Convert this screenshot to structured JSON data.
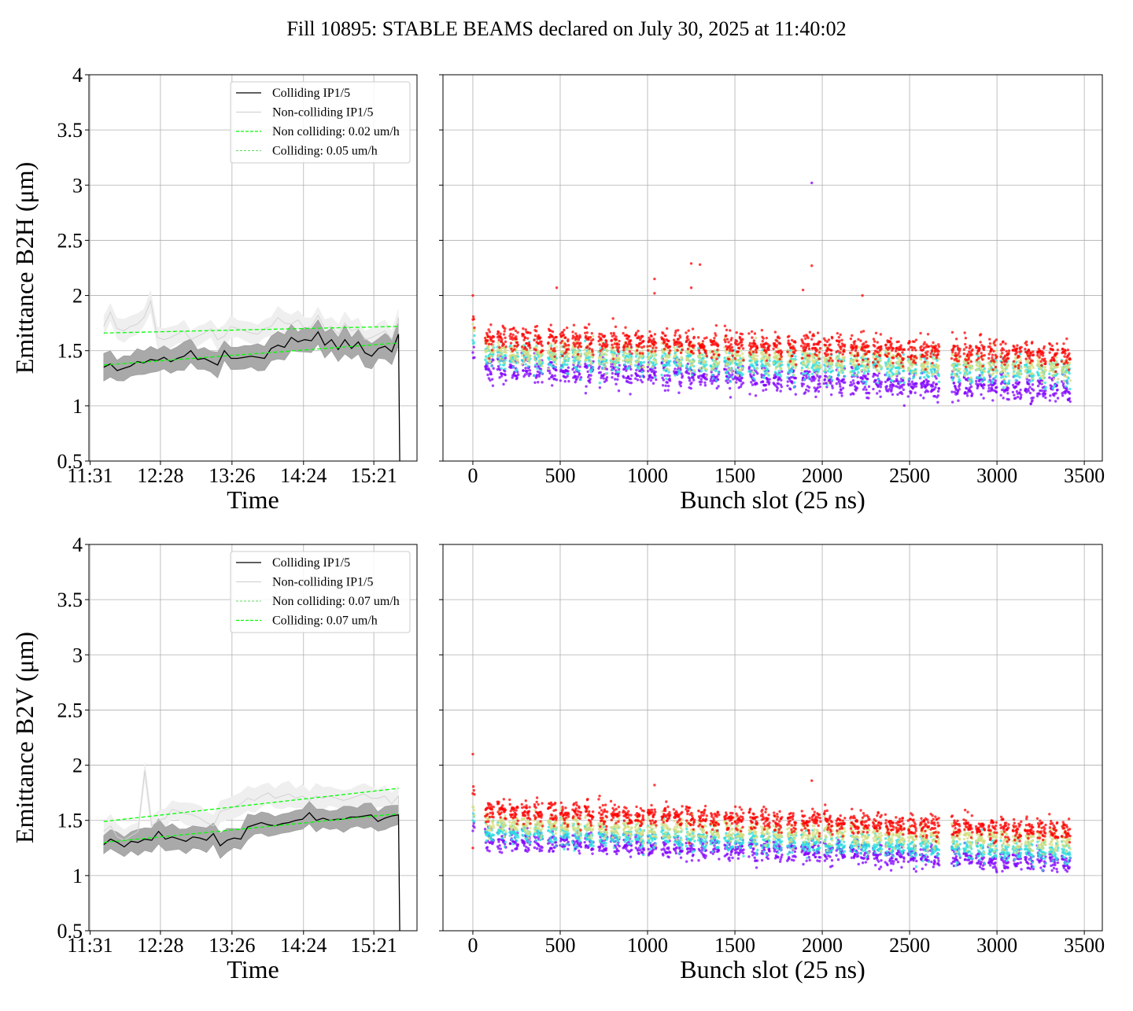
{
  "title": "Fill 10895: STABLE BEAMS declared on July 30, 2025 at 11:40:02",
  "colors": {
    "colliding": "#000000",
    "colliding_band": "#a9a9a9",
    "noncolliding": "#d3d3d3",
    "noncolliding_band": "#efefef",
    "fit": "#00ff00",
    "rainbow": [
      "#8000ff",
      "#2adddd",
      "#d4dd80",
      "#ff0000"
    ]
  },
  "chart_data": [
    {
      "type": "line",
      "panel": "top-left",
      "ylabel": "Emittance B2H (μm)",
      "xlabel": "Time",
      "ylim": [
        0.5,
        4.0
      ],
      "yticks": [
        0.5,
        1.0,
        1.5,
        2.0,
        2.5,
        3.0,
        3.5,
        4.0
      ],
      "xlim_minutes_from_11_31": [
        -1,
        265
      ],
      "xticks": [
        {
          "min": 0,
          "label": "11:31"
        },
        {
          "min": 57,
          "label": "12:28"
        },
        {
          "min": 115,
          "label": "13:26"
        },
        {
          "min": 173,
          "label": "14:24"
        },
        {
          "min": 230,
          "label": "15:21"
        }
      ],
      "t_start_min": 11,
      "t_end_min": 250,
      "drop_to": 0.5,
      "colliding": [
        1.35,
        1.38,
        1.32,
        1.34,
        1.36,
        1.4,
        1.39,
        1.42,
        1.41,
        1.44,
        1.4,
        1.43,
        1.45,
        1.5,
        1.42,
        1.43,
        1.4,
        1.37,
        1.5,
        1.43,
        1.43,
        1.44,
        1.45,
        1.44,
        1.43,
        1.52,
        1.55,
        1.53,
        1.62,
        1.58,
        1.6,
        1.59,
        1.67,
        1.55,
        1.6,
        1.51,
        1.6,
        1.52,
        1.58,
        1.48,
        1.45,
        1.52,
        1.54,
        1.49,
        1.65
      ],
      "colliding_spread": 0.11,
      "noncolliding": [
        1.72,
        1.85,
        1.7,
        1.68,
        1.72,
        1.74,
        1.8,
        1.95,
        1.62,
        1.6,
        1.62,
        1.65,
        1.68,
        1.6,
        1.63,
        1.66,
        1.7,
        1.6,
        1.63,
        1.72,
        1.7,
        1.68,
        1.66,
        1.65,
        1.7,
        1.72,
        1.8,
        1.75,
        1.74,
        1.78,
        1.7,
        1.72,
        1.82,
        1.7,
        1.72,
        1.65,
        1.75,
        1.68,
        1.7,
        1.6,
        1.62,
        1.65,
        1.68,
        1.6,
        1.8
      ],
      "noncolliding_spread": 0.09,
      "fit_noncolliding": [
        1.66,
        1.72
      ],
      "fit_colliding": [
        1.37,
        1.57
      ],
      "legend": {
        "placement": "top-right",
        "entries": [
          {
            "label": "Colliding IP1/5",
            "style": "colliding"
          },
          {
            "label": "Non-colliding IP1/5",
            "style": "noncolliding"
          },
          {
            "label": "Non colliding: 0.02 um/h",
            "style": "fit-bold"
          },
          {
            "label": "Colliding: 0.05 um/h",
            "style": "fit-thin"
          }
        ]
      }
    },
    {
      "type": "scatter",
      "panel": "top-right",
      "xlabel": "Bunch slot (25 ns)",
      "xlim": [
        -171,
        3603
      ],
      "xticks": [
        0,
        500,
        1000,
        1500,
        2000,
        2500,
        3000,
        3500
      ],
      "ylim": [
        0.5,
        4.0
      ],
      "train_starts": [
        70,
        140,
        210,
        280,
        350,
        430,
        500,
        570,
        640,
        720,
        790,
        860,
        930,
        1000,
        1080,
        1150,
        1220,
        1290,
        1360,
        1440,
        1500,
        1580,
        1650,
        1720,
        1800,
        1880,
        1940,
        2010,
        2080,
        2160,
        2220,
        2290,
        2360,
        2420,
        2490,
        2560,
        2620,
        2740,
        2810,
        2880,
        2950,
        3020,
        3090,
        3160,
        3230,
        3300,
        3370
      ],
      "train_length": 50,
      "bands_start_end": [
        [
          1.35,
          1.13
        ],
        [
          1.45,
          1.3
        ],
        [
          1.5,
          1.35
        ],
        [
          1.62,
          1.46
        ]
      ],
      "spread": 0.06,
      "outliers": [
        [
          1940,
          3.02
        ],
        [
          1940,
          2.27
        ],
        [
          1250,
          2.29
        ],
        [
          1300,
          2.28
        ],
        [
          1040,
          2.15
        ],
        [
          1040,
          2.02
        ],
        [
          1890,
          2.05
        ],
        [
          480,
          2.07
        ],
        [
          2230,
          2.0
        ],
        [
          0,
          2.0
        ],
        [
          1250,
          2.07
        ]
      ]
    },
    {
      "type": "line",
      "panel": "bottom-left",
      "ylabel": "Emittance B2V (μm)",
      "xlabel": "Time",
      "ylim": [
        0.5,
        4.0
      ],
      "yticks": [
        0.5,
        1.0,
        1.5,
        2.0,
        2.5,
        3.0,
        3.5,
        4.0
      ],
      "xlim_minutes_from_11_31": [
        -1,
        265
      ],
      "xticks": [
        {
          "min": 0,
          "label": "11:31"
        },
        {
          "min": 57,
          "label": "12:28"
        },
        {
          "min": 115,
          "label": "13:26"
        },
        {
          "min": 173,
          "label": "14:24"
        },
        {
          "min": 230,
          "label": "15:21"
        }
      ],
      "t_start_min": 11,
      "t_end_min": 250,
      "drop_to": 0.5,
      "colliding": [
        1.28,
        1.33,
        1.3,
        1.26,
        1.31,
        1.3,
        1.33,
        1.32,
        1.4,
        1.33,
        1.35,
        1.33,
        1.31,
        1.35,
        1.34,
        1.32,
        1.38,
        1.27,
        1.32,
        1.34,
        1.33,
        1.44,
        1.46,
        1.48,
        1.46,
        1.45,
        1.47,
        1.48,
        1.5,
        1.51,
        1.57,
        1.5,
        1.52,
        1.5,
        1.51,
        1.51,
        1.53,
        1.53,
        1.54,
        1.55,
        1.49,
        1.52,
        1.54,
        1.55
      ],
      "colliding_spread": 0.1,
      "noncolliding": [
        1.4,
        1.45,
        1.35,
        1.32,
        1.36,
        1.4,
        1.95,
        1.45,
        1.5,
        1.52,
        1.6,
        1.58,
        1.56,
        1.55,
        1.52,
        1.48,
        1.45,
        1.58,
        1.6,
        1.62,
        1.65,
        1.7,
        1.68,
        1.72,
        1.75,
        1.7,
        1.72,
        1.74,
        1.7,
        1.72,
        1.68,
        1.72,
        1.7,
        1.72,
        1.7,
        1.68,
        1.7,
        1.72,
        1.74,
        1.7,
        1.7,
        1.72,
        1.65,
        1.72
      ],
      "noncolliding_spread": 0.1,
      "fit_noncolliding": [
        1.49,
        1.79
      ],
      "fit_colliding": [
        1.3,
        1.56
      ],
      "legend": {
        "placement": "top-right",
        "entries": [
          {
            "label": "Colliding IP1/5",
            "style": "colliding"
          },
          {
            "label": "Non-colliding IP1/5",
            "style": "noncolliding"
          },
          {
            "label": "Non colliding: 0.07 um/h",
            "style": "fit-thin"
          },
          {
            "label": "Colliding: 0.07 um/h",
            "style": "fit-bold"
          }
        ]
      }
    },
    {
      "type": "scatter",
      "panel": "bottom-right",
      "xlabel": "Bunch slot (25 ns)",
      "xlim": [
        -171,
        3603
      ],
      "xticks": [
        0,
        500,
        1000,
        1500,
        2000,
        2500,
        3000,
        3500
      ],
      "ylim": [
        0.5,
        4.0
      ],
      "train_starts": [
        70,
        140,
        210,
        280,
        350,
        430,
        500,
        570,
        640,
        720,
        790,
        860,
        930,
        1000,
        1080,
        1150,
        1220,
        1290,
        1360,
        1440,
        1500,
        1580,
        1650,
        1720,
        1800,
        1880,
        1940,
        2010,
        2080,
        2160,
        2220,
        2290,
        2360,
        2420,
        2490,
        2560,
        2620,
        2740,
        2810,
        2880,
        2950,
        3020,
        3090,
        3160,
        3230,
        3300,
        3370
      ],
      "train_length": 50,
      "bands_start_end": [
        [
          1.33,
          1.12
        ],
        [
          1.4,
          1.2
        ],
        [
          1.48,
          1.3
        ],
        [
          1.6,
          1.4
        ]
      ],
      "spread": 0.05,
      "outliers": [
        [
          0,
          2.1
        ],
        [
          1940,
          1.86
        ],
        [
          0,
          1.25
        ],
        [
          1040,
          1.82
        ]
      ]
    }
  ]
}
